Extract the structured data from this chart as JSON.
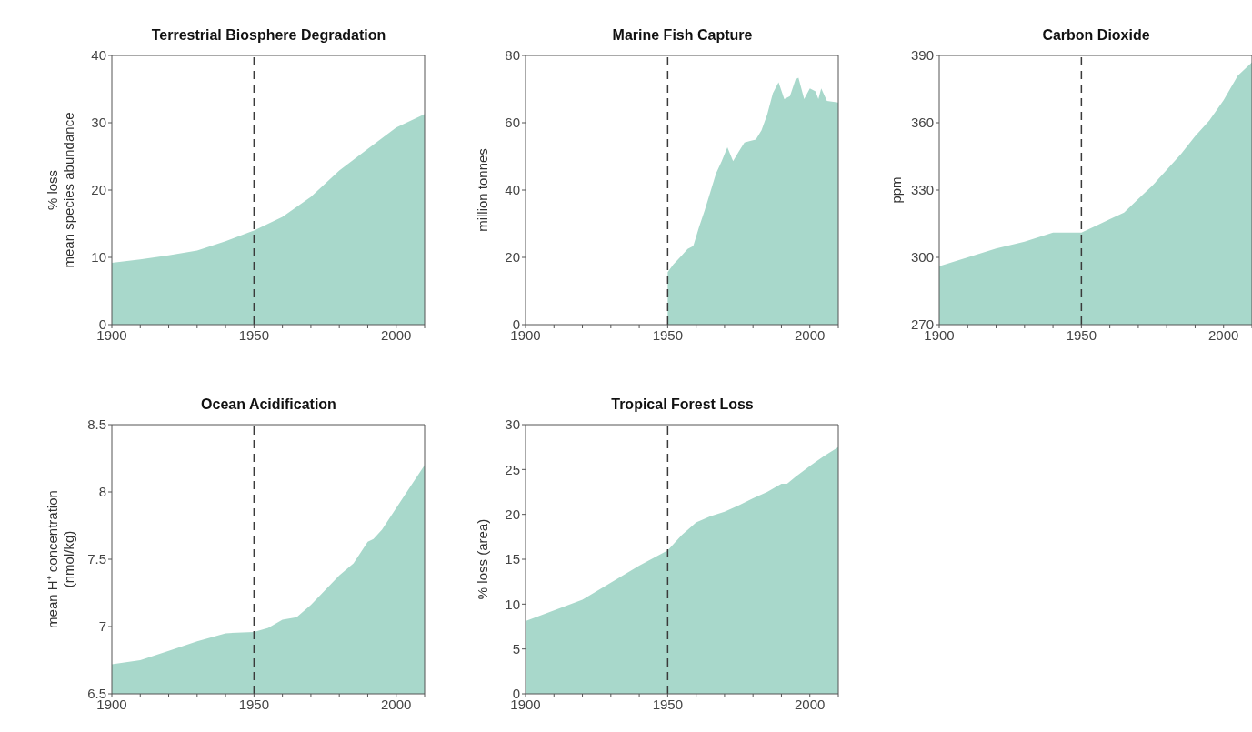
{
  "chart_data": [
    {
      "type": "area",
      "title": "Terrestrial Biosphere Degradation",
      "ylabel": "% loss\nmean species abundance",
      "color": "#a8d8cb",
      "x": [
        1900,
        1910,
        1920,
        1930,
        1940,
        1950,
        1960,
        1970,
        1980,
        1990,
        2000,
        2010
      ],
      "values": [
        9.2,
        9.7,
        10.3,
        11.0,
        12.4,
        14.0,
        16.0,
        19.0,
        22.9,
        26.1,
        29.3,
        31.3
      ],
      "xlim": [
        1900,
        2010
      ],
      "xticks": [
        1900,
        {
          "value": 1910,
          "label": null
        },
        {
          "value": 1920,
          "label": null
        },
        {
          "value": 1930,
          "label": null
        },
        {
          "value": 1940,
          "label": null
        },
        1950,
        {
          "value": 1960,
          "label": null
        },
        {
          "value": 1970,
          "label": null
        },
        {
          "value": 1980,
          "label": null
        },
        {
          "value": 1990,
          "label": null
        },
        2000,
        {
          "value": 2010,
          "label": null
        }
      ],
      "ylim": [
        0,
        40
      ],
      "yticks": [
        0,
        10,
        20,
        30,
        40
      ],
      "ref_lines": [
        {
          "axis": "x",
          "value": 1950,
          "line_style": "dashed",
          "color": "#3a3a3a"
        }
      ]
    },
    {
      "type": "area",
      "title": "Marine Fish Capture",
      "ylabel": "million tonnes",
      "color": "#a8d8cb",
      "x": [
        1950,
        1952,
        1955,
        1957,
        1959,
        1961,
        1963,
        1965,
        1967,
        1969,
        1971,
        1973,
        1975,
        1977,
        1979,
        1981,
        1983,
        1985,
        1987,
        1989,
        1991,
        1993,
        1995,
        1996,
        1998,
        2000,
        2002,
        2003,
        2004,
        2006,
        2010
      ],
      "values": [
        15.6,
        17.9,
        20.6,
        22.5,
        23.4,
        28.9,
        33.9,
        39.4,
        44.9,
        48.6,
        52.7,
        48.6,
        51.4,
        54.1,
        54.6,
        55.0,
        57.8,
        62.4,
        68.8,
        72.0,
        67.0,
        67.9,
        72.9,
        73.4,
        67.0,
        70.2,
        69.3,
        67.0,
        70.2,
        66.5,
        66.0
      ],
      "xlim": [
        1900,
        2010
      ],
      "xticks": [
        1900,
        {
          "value": 1910,
          "label": null
        },
        {
          "value": 1920,
          "label": null
        },
        {
          "value": 1930,
          "label": null
        },
        {
          "value": 1940,
          "label": null
        },
        1950,
        {
          "value": 1960,
          "label": null
        },
        {
          "value": 1970,
          "label": null
        },
        {
          "value": 1980,
          "label": null
        },
        {
          "value": 1990,
          "label": null
        },
        2000,
        {
          "value": 2010,
          "label": null
        }
      ],
      "ylim": [
        0,
        80
      ],
      "yticks": [
        0,
        20,
        40,
        60,
        80
      ],
      "ref_lines": [
        {
          "axis": "x",
          "value": 1950,
          "line_style": "dashed",
          "color": "#3a3a3a"
        }
      ]
    },
    {
      "type": "area",
      "title": "Carbon Dioxide",
      "ylabel": "ppm",
      "color": "#a8d8cb",
      "x": [
        1900,
        1910,
        1920,
        1930,
        1940,
        1945,
        1950,
        1955,
        1960,
        1965,
        1970,
        1975,
        1980,
        1985,
        1990,
        1995,
        2000,
        2005,
        2010
      ],
      "values": [
        296,
        300,
        304,
        307,
        311,
        311,
        311,
        314,
        317,
        320,
        326,
        332,
        339,
        346,
        354,
        361,
        370,
        381,
        387
      ],
      "xlim": [
        1900,
        2010
      ],
      "xticks": [
        1900,
        {
          "value": 1910,
          "label": null
        },
        {
          "value": 1920,
          "label": null
        },
        {
          "value": 1930,
          "label": null
        },
        {
          "value": 1940,
          "label": null
        },
        1950,
        {
          "value": 1960,
          "label": null
        },
        {
          "value": 1970,
          "label": null
        },
        {
          "value": 1980,
          "label": null
        },
        {
          "value": 1990,
          "label": null
        },
        2000,
        {
          "value": 2010,
          "label": null
        }
      ],
      "ylim": [
        270,
        390
      ],
      "yticks": [
        270,
        300,
        330,
        360,
        390
      ],
      "ref_lines": [
        {
          "axis": "x",
          "value": 1950,
          "line_style": "dashed",
          "color": "#3a3a3a"
        }
      ]
    },
    {
      "type": "area",
      "title": "Ocean Acidification",
      "ylabel": "mean H⁺ concentration\n(nmol/kg)",
      "color": "#a8d8cb",
      "x": [
        1900,
        1910,
        1920,
        1930,
        1940,
        1950,
        1955,
        1960,
        1965,
        1970,
        1975,
        1980,
        1985,
        1990,
        1992,
        1995,
        2000,
        2005,
        2010
      ],
      "values": [
        6.72,
        6.75,
        6.82,
        6.89,
        6.95,
        6.96,
        6.99,
        7.05,
        7.07,
        7.16,
        7.27,
        7.38,
        7.47,
        7.63,
        7.65,
        7.72,
        7.88,
        8.04,
        8.2
      ],
      "xlim": [
        1900,
        2010
      ],
      "xticks": [
        1900,
        {
          "value": 1910,
          "label": null
        },
        {
          "value": 1920,
          "label": null
        },
        {
          "value": 1930,
          "label": null
        },
        {
          "value": 1940,
          "label": null
        },
        1950,
        {
          "value": 1960,
          "label": null
        },
        {
          "value": 1970,
          "label": null
        },
        {
          "value": 1980,
          "label": null
        },
        {
          "value": 1990,
          "label": null
        },
        2000,
        {
          "value": 2010,
          "label": null
        }
      ],
      "ylim": [
        6.5,
        8.5
      ],
      "yticks": [
        6.5,
        7,
        7.5,
        8,
        8.5
      ],
      "ref_lines": [
        {
          "axis": "x",
          "value": 1950,
          "line_style": "dashed",
          "color": "#3a3a3a"
        }
      ]
    },
    {
      "type": "area",
      "title": "Tropical Forest Loss",
      "ylabel": "% loss (area)",
      "color": "#a8d8cb",
      "x": [
        1900,
        1910,
        1920,
        1930,
        1940,
        1950,
        1955,
        1960,
        1965,
        1970,
        1975,
        1980,
        1985,
        1990,
        1992,
        1995,
        2000,
        2005,
        2010
      ],
      "values": [
        8.1,
        9.3,
        10.5,
        12.4,
        14.3,
        16.0,
        17.7,
        19.1,
        19.8,
        20.3,
        21.0,
        21.8,
        22.5,
        23.4,
        23.4,
        24.2,
        25.4,
        26.5,
        27.5
      ],
      "xlim": [
        1900,
        2010
      ],
      "xticks": [
        1900,
        {
          "value": 1910,
          "label": null
        },
        {
          "value": 1920,
          "label": null
        },
        {
          "value": 1930,
          "label": null
        },
        {
          "value": 1940,
          "label": null
        },
        1950,
        {
          "value": 1960,
          "label": null
        },
        {
          "value": 1970,
          "label": null
        },
        {
          "value": 1980,
          "label": null
        },
        {
          "value": 1990,
          "label": null
        },
        2000,
        {
          "value": 2010,
          "label": null
        }
      ],
      "ylim": [
        0,
        30
      ],
      "yticks": [
        0,
        5,
        10,
        15,
        20,
        25,
        30
      ],
      "ref_lines": [
        {
          "axis": "x",
          "value": 1950,
          "line_style": "dashed",
          "color": "#3a3a3a"
        }
      ]
    }
  ]
}
